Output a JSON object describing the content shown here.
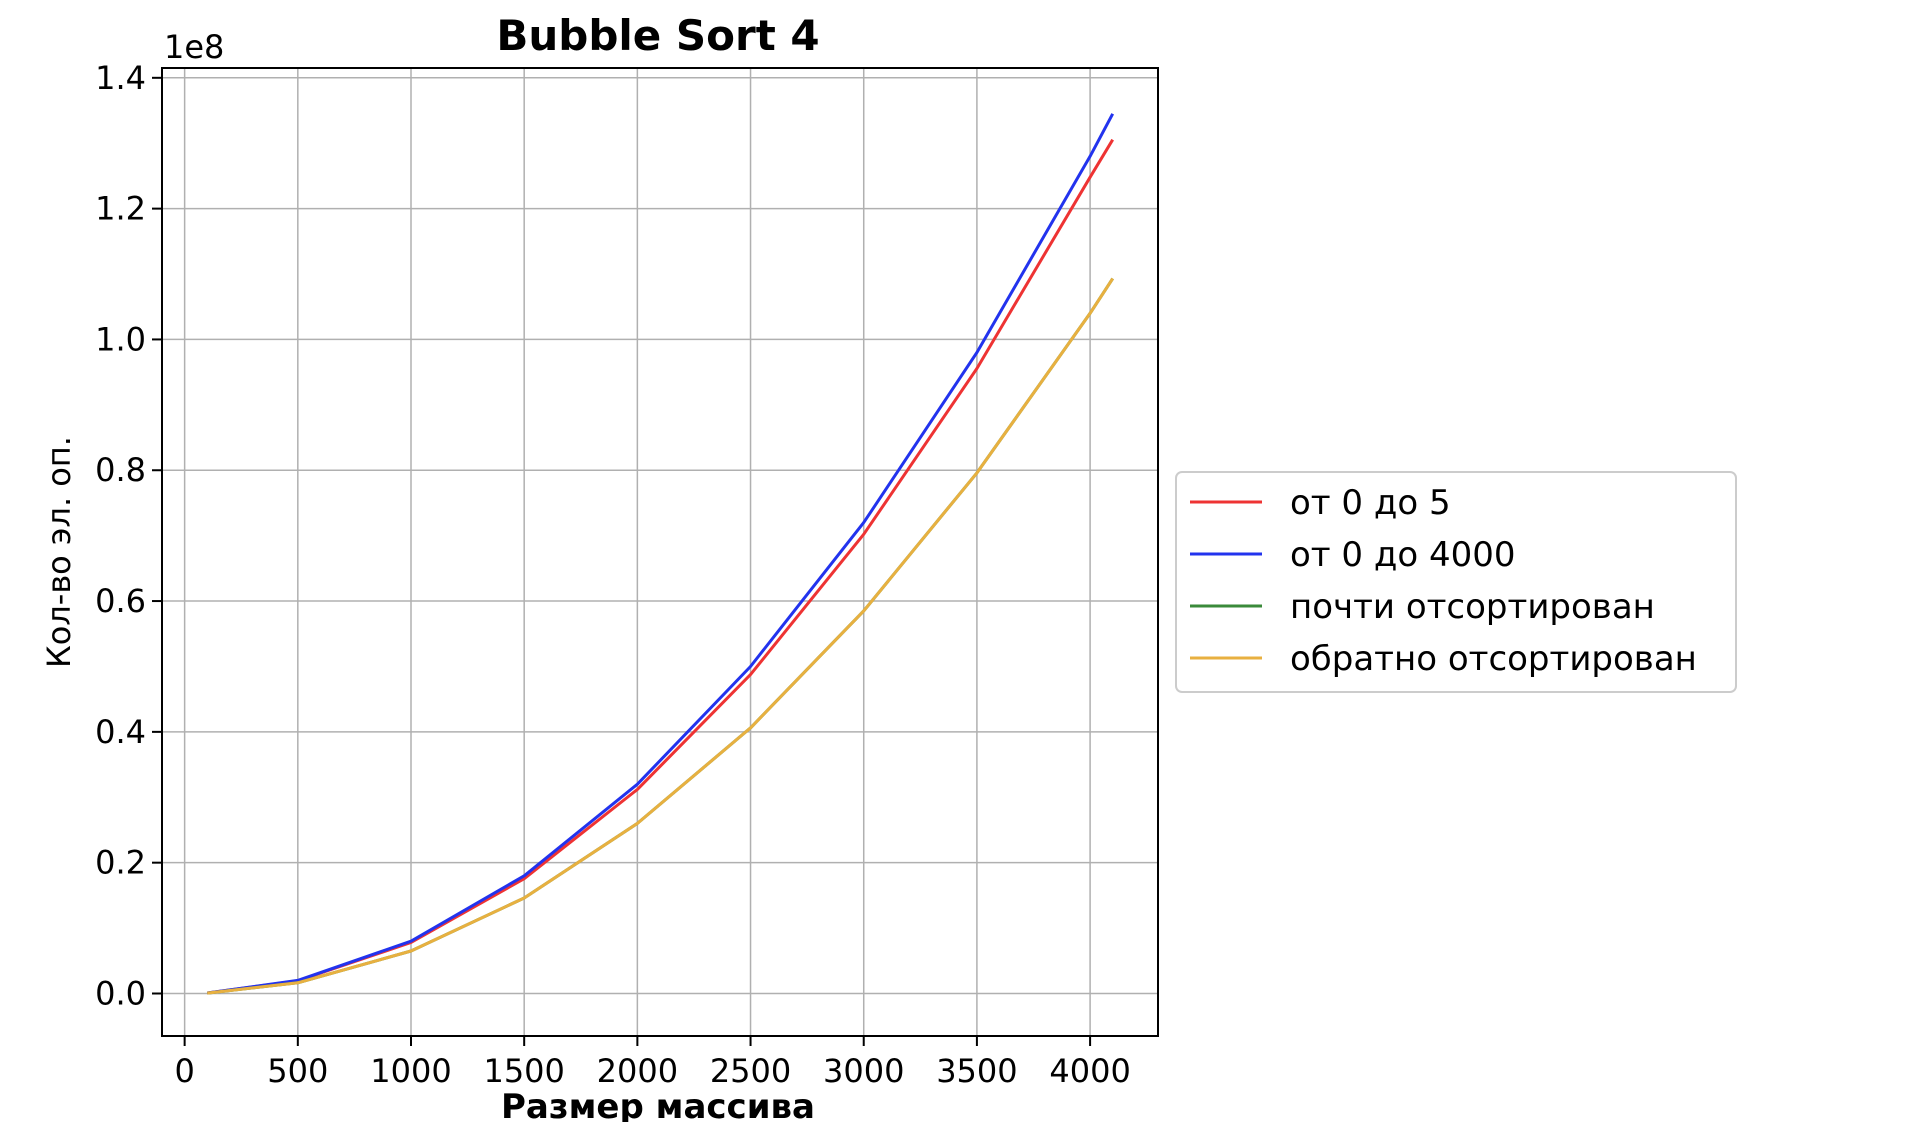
{
  "chart_data": {
    "type": "line",
    "title": "Bubble Sort 4",
    "xlabel": "Размер массива",
    "ylabel": "Кол-во эл. оп.",
    "y_offset_label": "1e8",
    "xlim": [
      -100,
      4300
    ],
    "ylim": [
      -0.065,
      1.415
    ],
    "y_scale_exponent": 8,
    "xticks": [
      0,
      500,
      1000,
      1500,
      2000,
      2500,
      3000,
      3500,
      4000
    ],
    "xtick_labels": [
      "0",
      "500",
      "1000",
      "1500",
      "2000",
      "2500",
      "3000",
      "3500",
      "4000"
    ],
    "yticks": [
      0.0,
      0.2,
      0.4,
      0.6,
      0.8,
      1.0,
      1.2,
      1.4
    ],
    "ytick_labels": [
      "0.0",
      "0.2",
      "0.4",
      "0.6",
      "0.8",
      "1.0",
      "1.2",
      "1.4"
    ],
    "grid": true,
    "legend_position": "center-right outside",
    "x": [
      100,
      500,
      1000,
      1500,
      2000,
      2500,
      3000,
      3500,
      4000,
      4100
    ],
    "series": [
      {
        "name": "от 0 до 5",
        "color": "#ee3333",
        "values": [
          0.0008,
          0.0195,
          0.078,
          0.1755,
          0.312,
          0.4875,
          0.702,
          0.9555,
          1.248,
          1.3053
        ]
      },
      {
        "name": "от 0 до 4000",
        "color": "#2233ee",
        "values": [
          0.0008,
          0.02,
          0.08,
          0.18,
          0.32,
          0.5,
          0.72,
          0.98,
          1.28,
          1.345
        ]
      },
      {
        "name": "почти отсортирован",
        "color": "#3a8a3a",
        "values": [
          0.0006,
          0.0163,
          0.065,
          0.146,
          0.26,
          0.406,
          0.585,
          0.796,
          1.04,
          1.093
        ]
      },
      {
        "name": "обратно отсортирован",
        "color": "#e8b040",
        "values": [
          0.0006,
          0.0163,
          0.065,
          0.146,
          0.26,
          0.406,
          0.585,
          0.796,
          1.04,
          1.093
        ]
      }
    ]
  }
}
